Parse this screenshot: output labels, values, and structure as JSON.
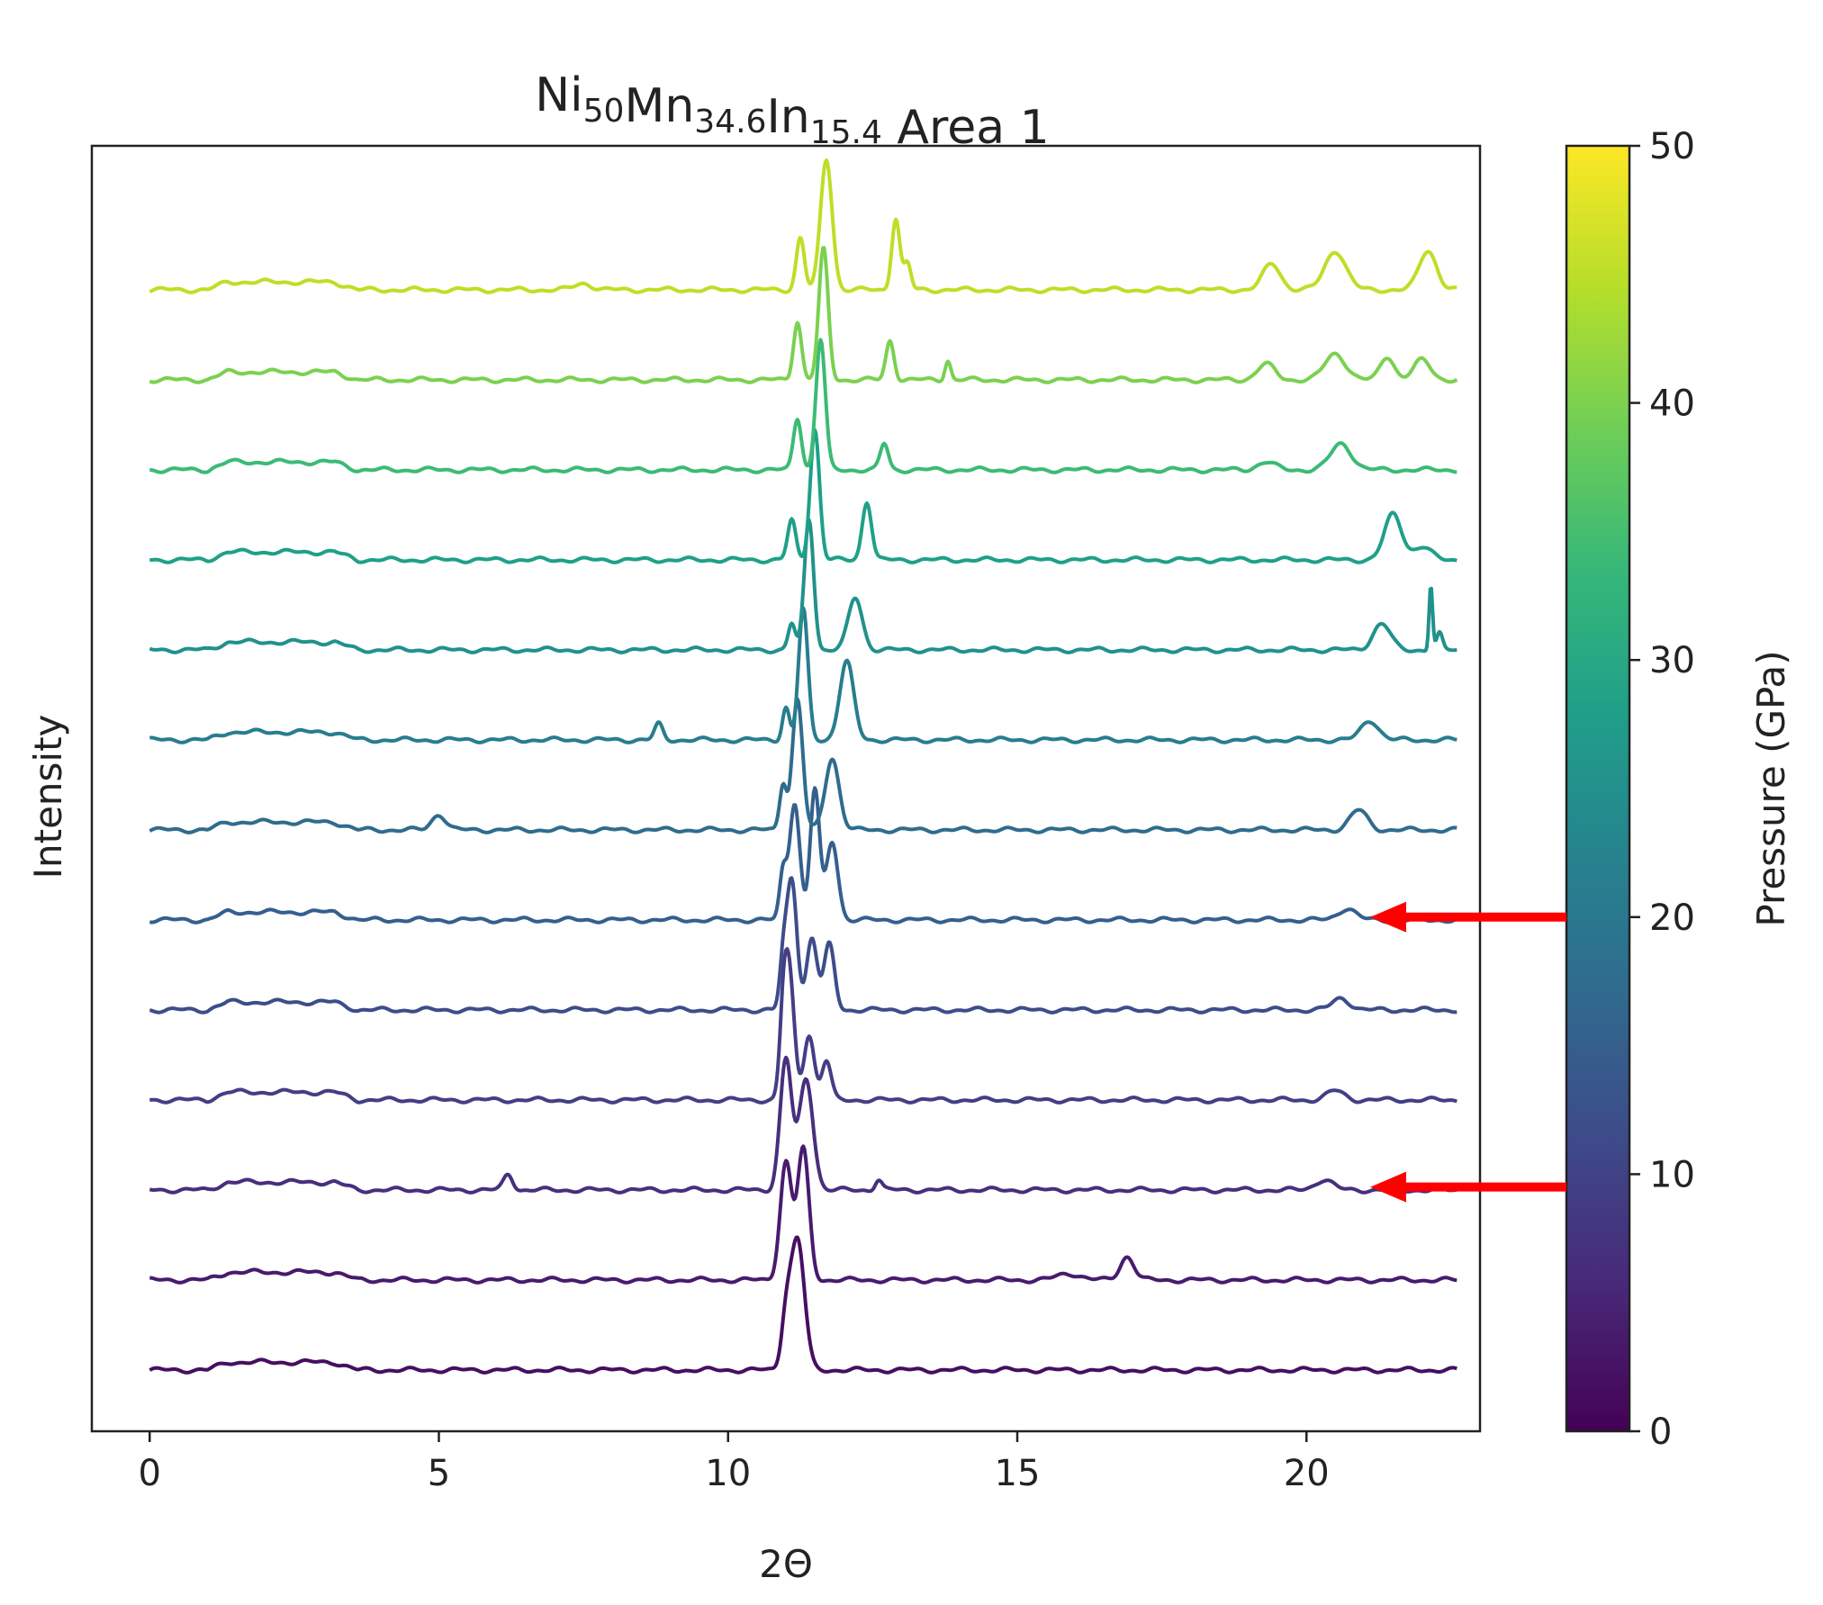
{
  "chart_data": {
    "type": "line",
    "title": "Area 1",
    "title_formula": [
      {
        "text": "Ni",
        "sub": "50"
      },
      {
        "text": "Mn",
        "sub": "34.6"
      },
      {
        "text": "In",
        "sub": "15.4"
      }
    ],
    "xlabel": "2Θ",
    "ylabel": "Intensity",
    "xlim": [
      -1,
      23
    ],
    "xticks": [
      0,
      5,
      10,
      15,
      20
    ],
    "x_range": [
      0,
      22.6
    ],
    "y_ticks_shown": false,
    "grid": false,
    "colorbar": {
      "label": "Pressure (GPa)",
      "range": [
        0,
        50
      ],
      "ticks": [
        0,
        10,
        20,
        30,
        40,
        50
      ],
      "colormap": [
        "#440154",
        "#482878",
        "#3e4989",
        "#31688e",
        "#26828e",
        "#1f9e89",
        "#35b779",
        "#6ece58",
        "#b5de2b",
        "#fde725"
      ]
    },
    "annotations": [
      {
        "type": "arrow",
        "pressure": 20,
        "color": "#ff0000"
      },
      {
        "type": "arrow",
        "pressure": 9.5,
        "color": "#ff0000"
      }
    ],
    "series": [
      {
        "pressure": 0.5,
        "color": "#470e61",
        "peaks": [
          [
            11.2,
            1.0,
            0.12
          ],
          [
            11.0,
            0.35,
            0.08
          ]
        ]
      },
      {
        "pressure": 5,
        "color": "#481b6d",
        "peaks": [
          [
            11.0,
            0.9,
            0.1
          ],
          [
            11.3,
            1.0,
            0.1
          ],
          [
            16.9,
            0.18,
            0.12
          ],
          [
            15.9,
            0.05,
            0.2
          ]
        ]
      },
      {
        "pressure": 9.5,
        "color": "#472f7d",
        "peaks": [
          [
            11.0,
            1.0,
            0.1
          ],
          [
            11.35,
            0.85,
            0.12
          ],
          [
            6.2,
            0.12,
            0.08
          ],
          [
            12.6,
            0.08,
            0.06
          ],
          [
            20.3,
            0.08,
            0.15
          ]
        ]
      },
      {
        "pressure": 12.5,
        "color": "#433e85",
        "peaks": [
          [
            11.05,
            1.0,
            0.09
          ],
          [
            10.95,
            0.4,
            0.06
          ],
          [
            11.4,
            0.5,
            0.09
          ],
          [
            11.7,
            0.3,
            0.08
          ],
          [
            20.5,
            0.07,
            0.15
          ]
        ]
      },
      {
        "pressure": 16,
        "color": "#3d4d8a",
        "peaks": [
          [
            11.1,
            1.0,
            0.09
          ],
          [
            11.45,
            0.55,
            0.09
          ],
          [
            11.75,
            0.5,
            0.09
          ],
          [
            10.95,
            0.3,
            0.06
          ],
          [
            20.6,
            0.09,
            0.15
          ]
        ]
      },
      {
        "pressure": 19.5,
        "color": "#355f8d",
        "peaks": [
          [
            11.15,
            0.9,
            0.09
          ],
          [
            11.5,
            1.0,
            0.08
          ],
          [
            11.8,
            0.6,
            0.1
          ],
          [
            10.95,
            0.35,
            0.06
          ],
          [
            20.7,
            0.09,
            0.15
          ]
        ]
      },
      {
        "pressure": 23,
        "color": "#2f6c8e",
        "peaks": [
          [
            11.2,
            1.0,
            0.09
          ],
          [
            11.8,
            0.55,
            0.12
          ],
          [
            10.95,
            0.35,
            0.06
          ],
          [
            5.0,
            0.12,
            0.12
          ],
          [
            20.9,
            0.15,
            0.15
          ]
        ]
      },
      {
        "pressure": 26.5,
        "color": "#287d8e",
        "peaks": [
          [
            11.3,
            1.0,
            0.08
          ],
          [
            12.05,
            0.6,
            0.12
          ],
          [
            11.0,
            0.25,
            0.06
          ],
          [
            8.8,
            0.12,
            0.07
          ],
          [
            21.1,
            0.15,
            0.15
          ]
        ]
      },
      {
        "pressure": 30,
        "color": "#21918c",
        "peaks": [
          [
            11.4,
            1.0,
            0.08
          ],
          [
            12.2,
            0.4,
            0.12
          ],
          [
            11.1,
            0.2,
            0.06
          ],
          [
            21.3,
            0.2,
            0.15
          ],
          [
            22.15,
            0.5,
            0.03
          ],
          [
            22.3,
            0.12,
            0.05
          ]
        ]
      },
      {
        "pressure": 33.5,
        "color": "#1fa088",
        "peaks": [
          [
            11.5,
            1.0,
            0.08
          ],
          [
            12.4,
            0.45,
            0.08
          ],
          [
            11.1,
            0.3,
            0.07
          ],
          [
            21.5,
            0.35,
            0.15
          ],
          [
            22.0,
            0.1,
            0.15
          ]
        ]
      },
      {
        "pressure": 37,
        "color": "#3bbb75",
        "peaks": [
          [
            11.6,
            1.0,
            0.08
          ],
          [
            11.2,
            0.4,
            0.07
          ],
          [
            12.7,
            0.2,
            0.07
          ],
          [
            20.6,
            0.2,
            0.18
          ],
          [
            19.3,
            0.06,
            0.15
          ]
        ]
      },
      {
        "pressure": 41,
        "color": "#7ad151",
        "peaks": [
          [
            11.65,
            1.0,
            0.08
          ],
          [
            11.2,
            0.45,
            0.07
          ],
          [
            12.8,
            0.3,
            0.07
          ],
          [
            13.8,
            0.15,
            0.05
          ],
          [
            20.5,
            0.2,
            0.18
          ],
          [
            21.4,
            0.18,
            0.12
          ],
          [
            22.0,
            0.15,
            0.15
          ],
          [
            19.3,
            0.12,
            0.15
          ]
        ]
      },
      {
        "pressure": 45,
        "color": "#bddf26",
        "peaks": [
          [
            11.7,
            1.0,
            0.1
          ],
          [
            11.25,
            0.4,
            0.07
          ],
          [
            12.9,
            0.55,
            0.07
          ],
          [
            13.1,
            0.2,
            0.06
          ],
          [
            20.5,
            0.3,
            0.18
          ],
          [
            22.1,
            0.3,
            0.15
          ],
          [
            19.4,
            0.2,
            0.15
          ],
          [
            7.5,
            0.05,
            0.15
          ]
        ]
      }
    ]
  }
}
